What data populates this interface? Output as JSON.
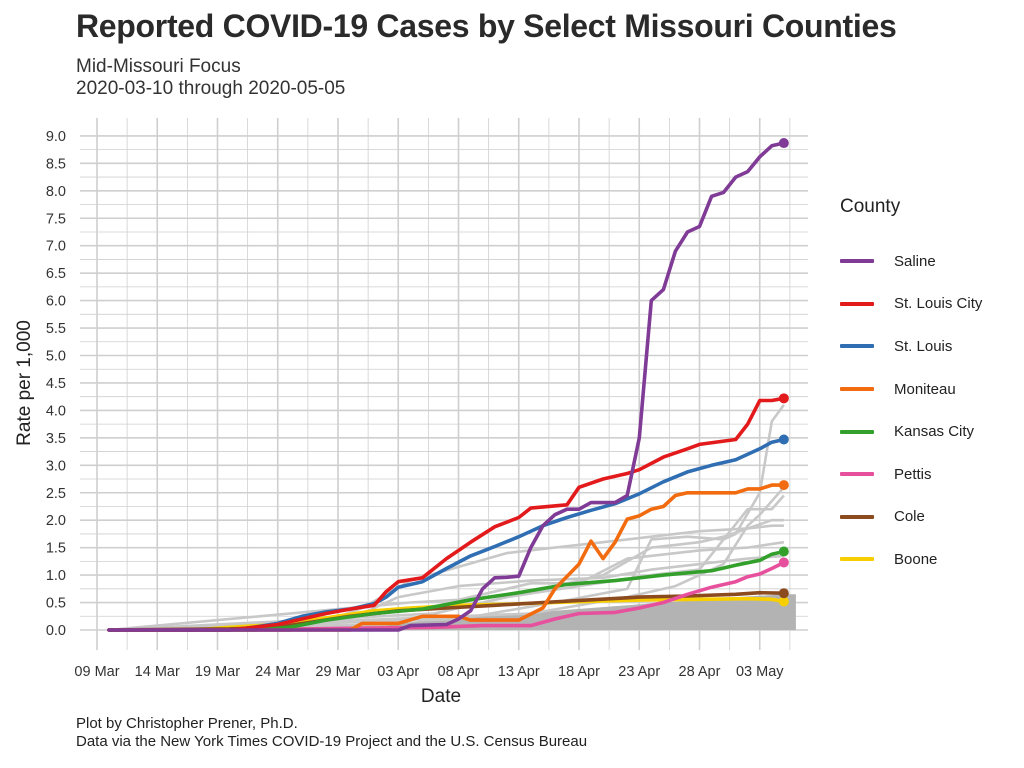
{
  "chart_data": {
    "type": "line",
    "title": "Reported COVID-19 Cases by Select Missouri Counties",
    "subtitle": [
      "Mid-Missouri Focus",
      "2020-03-10 through 2020-05-05"
    ],
    "xlabel": "Date",
    "ylabel": "Rate per 1,000",
    "xlim": [
      "2020-03-09",
      "2020-05-07"
    ],
    "ylim": [
      0,
      9
    ],
    "x_ticks": [
      {
        "date": "2020-03-09",
        "label": "09 Mar"
      },
      {
        "date": "2020-03-14",
        "label": "14 Mar"
      },
      {
        "date": "2020-03-19",
        "label": "19 Mar"
      },
      {
        "date": "2020-03-24",
        "label": "24 Mar"
      },
      {
        "date": "2020-03-29",
        "label": "29 Mar"
      },
      {
        "date": "2020-04-03",
        "label": "03 Apr"
      },
      {
        "date": "2020-04-08",
        "label": "08 Apr"
      },
      {
        "date": "2020-04-13",
        "label": "13 Apr"
      },
      {
        "date": "2020-04-18",
        "label": "18 Apr"
      },
      {
        "date": "2020-04-23",
        "label": "23 Apr"
      },
      {
        "date": "2020-04-28",
        "label": "28 Apr"
      },
      {
        "date": "2020-05-03",
        "label": "03 May"
      }
    ],
    "y_ticks": [
      "0.0",
      "0.5",
      "1.0",
      "1.5",
      "2.0",
      "2.5",
      "3.0",
      "3.5",
      "4.0",
      "4.5",
      "5.0",
      "5.5",
      "6.0",
      "6.5",
      "7.0",
      "7.5",
      "8.0",
      "8.5",
      "9.0"
    ],
    "grid": true,
    "legend_title": "County",
    "legend_position": "right",
    "series": [
      {
        "name": "Saline",
        "color": "#7f3b96",
        "points": [
          [
            "2020-03-10",
            0
          ],
          [
            "2020-04-03",
            0
          ],
          [
            "2020-04-04",
            0.08
          ],
          [
            "2020-04-07",
            0.1
          ],
          [
            "2020-04-08",
            0.2
          ],
          [
            "2020-04-09",
            0.35
          ],
          [
            "2020-04-10",
            0.75
          ],
          [
            "2020-04-11",
            0.95
          ],
          [
            "2020-04-12",
            0.96
          ],
          [
            "2020-04-13",
            0.98
          ],
          [
            "2020-04-14",
            1.5
          ],
          [
            "2020-04-15",
            1.9
          ],
          [
            "2020-04-16",
            2.1
          ],
          [
            "2020-04-17",
            2.2
          ],
          [
            "2020-04-18",
            2.2
          ],
          [
            "2020-04-19",
            2.32
          ],
          [
            "2020-04-21",
            2.32
          ],
          [
            "2020-04-22",
            2.45
          ],
          [
            "2020-04-23",
            3.5
          ],
          [
            "2020-04-24",
            6.0
          ],
          [
            "2020-04-25",
            6.2
          ],
          [
            "2020-04-26",
            6.9
          ],
          [
            "2020-04-27",
            7.25
          ],
          [
            "2020-04-28",
            7.35
          ],
          [
            "2020-04-29",
            7.9
          ],
          [
            "2020-04-30",
            7.97
          ],
          [
            "2020-05-01",
            8.25
          ],
          [
            "2020-05-02",
            8.35
          ],
          [
            "2020-05-03",
            8.62
          ],
          [
            "2020-05-04",
            8.82
          ],
          [
            "2020-05-05",
            8.87
          ]
        ]
      },
      {
        "name": "St. Louis City",
        "color": "#e31a1c",
        "points": [
          [
            "2020-03-10",
            0
          ],
          [
            "2020-03-20",
            0
          ],
          [
            "2020-03-22",
            0.05
          ],
          [
            "2020-03-24",
            0.1
          ],
          [
            "2020-03-26",
            0.2
          ],
          [
            "2020-03-28",
            0.3
          ],
          [
            "2020-03-30",
            0.38
          ],
          [
            "2020-04-01",
            0.45
          ],
          [
            "2020-04-02",
            0.7
          ],
          [
            "2020-04-03",
            0.88
          ],
          [
            "2020-04-05",
            0.95
          ],
          [
            "2020-04-07",
            1.3
          ],
          [
            "2020-04-09",
            1.6
          ],
          [
            "2020-04-11",
            1.88
          ],
          [
            "2020-04-13",
            2.05
          ],
          [
            "2020-04-14",
            2.22
          ],
          [
            "2020-04-17",
            2.28
          ],
          [
            "2020-04-18",
            2.6
          ],
          [
            "2020-04-20",
            2.75
          ],
          [
            "2020-04-22",
            2.85
          ],
          [
            "2020-04-23",
            2.92
          ],
          [
            "2020-04-25",
            3.15
          ],
          [
            "2020-04-27",
            3.3
          ],
          [
            "2020-04-28",
            3.38
          ],
          [
            "2020-05-01",
            3.47
          ],
          [
            "2020-05-02",
            3.75
          ],
          [
            "2020-05-03",
            4.18
          ],
          [
            "2020-05-04",
            4.18
          ],
          [
            "2020-05-05",
            4.22
          ]
        ]
      },
      {
        "name": "St. Louis",
        "color": "#2f6eb2",
        "points": [
          [
            "2020-03-10",
            0
          ],
          [
            "2020-03-20",
            0
          ],
          [
            "2020-03-22",
            0.05
          ],
          [
            "2020-03-24",
            0.12
          ],
          [
            "2020-03-26",
            0.25
          ],
          [
            "2020-03-28",
            0.33
          ],
          [
            "2020-03-30",
            0.38
          ],
          [
            "2020-04-01",
            0.48
          ],
          [
            "2020-04-02",
            0.6
          ],
          [
            "2020-04-03",
            0.78
          ],
          [
            "2020-04-05",
            0.88
          ],
          [
            "2020-04-07",
            1.12
          ],
          [
            "2020-04-09",
            1.35
          ],
          [
            "2020-04-11",
            1.52
          ],
          [
            "2020-04-13",
            1.7
          ],
          [
            "2020-04-15",
            1.9
          ],
          [
            "2020-04-17",
            2.05
          ],
          [
            "2020-04-19",
            2.18
          ],
          [
            "2020-04-21",
            2.3
          ],
          [
            "2020-04-23",
            2.48
          ],
          [
            "2020-04-25",
            2.7
          ],
          [
            "2020-04-27",
            2.88
          ],
          [
            "2020-04-29",
            3.0
          ],
          [
            "2020-05-01",
            3.1
          ],
          [
            "2020-05-03",
            3.3
          ],
          [
            "2020-05-04",
            3.42
          ],
          [
            "2020-05-05",
            3.47
          ]
        ]
      },
      {
        "name": "Moniteau",
        "color": "#f26b0f",
        "points": [
          [
            "2020-03-10",
            0
          ],
          [
            "2020-03-30",
            0
          ],
          [
            "2020-03-31",
            0.12
          ],
          [
            "2020-04-03",
            0.12
          ],
          [
            "2020-04-05",
            0.25
          ],
          [
            "2020-04-08",
            0.25
          ],
          [
            "2020-04-09",
            0.18
          ],
          [
            "2020-04-13",
            0.18
          ],
          [
            "2020-04-15",
            0.4
          ],
          [
            "2020-04-16",
            0.75
          ],
          [
            "2020-04-18",
            1.2
          ],
          [
            "2020-04-19",
            1.62
          ],
          [
            "2020-04-20",
            1.3
          ],
          [
            "2020-04-21",
            1.6
          ],
          [
            "2020-04-22",
            2.02
          ],
          [
            "2020-04-23",
            2.08
          ],
          [
            "2020-04-24",
            2.2
          ],
          [
            "2020-04-25",
            2.25
          ],
          [
            "2020-04-26",
            2.45
          ],
          [
            "2020-04-27",
            2.5
          ],
          [
            "2020-05-01",
            2.5
          ],
          [
            "2020-05-02",
            2.57
          ],
          [
            "2020-05-03",
            2.57
          ],
          [
            "2020-05-04",
            2.64
          ],
          [
            "2020-05-05",
            2.64
          ]
        ]
      },
      {
        "name": "Kansas City",
        "color": "#33a02c",
        "points": [
          [
            "2020-03-10",
            0
          ],
          [
            "2020-03-22",
            0
          ],
          [
            "2020-03-25",
            0.05
          ],
          [
            "2020-03-28",
            0.18
          ],
          [
            "2020-04-01",
            0.3
          ],
          [
            "2020-04-05",
            0.38
          ],
          [
            "2020-04-09",
            0.55
          ],
          [
            "2020-04-13",
            0.68
          ],
          [
            "2020-04-17",
            0.83
          ],
          [
            "2020-04-21",
            0.9
          ],
          [
            "2020-04-25",
            1.0
          ],
          [
            "2020-04-29",
            1.08
          ],
          [
            "2020-05-01",
            1.18
          ],
          [
            "2020-05-03",
            1.27
          ],
          [
            "2020-05-04",
            1.38
          ],
          [
            "2020-05-05",
            1.43
          ]
        ]
      },
      {
        "name": "Pettis",
        "color": "#e7509d",
        "points": [
          [
            "2020-03-10",
            0
          ],
          [
            "2020-03-25",
            0
          ],
          [
            "2020-03-26",
            0.02
          ],
          [
            "2020-04-06",
            0.05
          ],
          [
            "2020-04-10",
            0.08
          ],
          [
            "2020-04-14",
            0.08
          ],
          [
            "2020-04-16",
            0.2
          ],
          [
            "2020-04-18",
            0.3
          ],
          [
            "2020-04-21",
            0.32
          ],
          [
            "2020-04-23",
            0.4
          ],
          [
            "2020-04-25",
            0.5
          ],
          [
            "2020-04-27",
            0.65
          ],
          [
            "2020-04-29",
            0.78
          ],
          [
            "2020-05-01",
            0.88
          ],
          [
            "2020-05-02",
            0.97
          ],
          [
            "2020-05-03",
            1.02
          ],
          [
            "2020-05-04",
            1.12
          ],
          [
            "2020-05-05",
            1.23
          ]
        ]
      },
      {
        "name": "Cole",
        "color": "#8c4a1f",
        "points": [
          [
            "2020-03-10",
            0
          ],
          [
            "2020-03-20",
            0.02
          ],
          [
            "2020-03-24",
            0.05
          ],
          [
            "2020-03-27",
            0.15
          ],
          [
            "2020-03-30",
            0.25
          ],
          [
            "2020-04-03",
            0.35
          ],
          [
            "2020-04-07",
            0.4
          ],
          [
            "2020-04-11",
            0.45
          ],
          [
            "2020-04-15",
            0.5
          ],
          [
            "2020-04-19",
            0.55
          ],
          [
            "2020-04-23",
            0.6
          ],
          [
            "2020-04-27",
            0.62
          ],
          [
            "2020-05-01",
            0.65
          ],
          [
            "2020-05-03",
            0.68
          ],
          [
            "2020-05-05",
            0.67
          ]
        ]
      },
      {
        "name": "Boone",
        "color": "#f7cf00",
        "points": [
          [
            "2020-03-10",
            0
          ],
          [
            "2020-03-17",
            0
          ],
          [
            "2020-03-20",
            0.05
          ],
          [
            "2020-03-24",
            0.1
          ],
          [
            "2020-03-28",
            0.22
          ],
          [
            "2020-04-01",
            0.35
          ],
          [
            "2020-04-04",
            0.4
          ],
          [
            "2020-04-08",
            0.45
          ],
          [
            "2020-04-12",
            0.47
          ],
          [
            "2020-04-16",
            0.5
          ],
          [
            "2020-04-20",
            0.53
          ],
          [
            "2020-04-24",
            0.55
          ],
          [
            "2020-04-28",
            0.56
          ],
          [
            "2020-05-02",
            0.57
          ],
          [
            "2020-05-04",
            0.56
          ],
          [
            "2020-05-05",
            0.52
          ]
        ]
      }
    ]
  },
  "caption": [
    "Plot by Christopher Prener, Ph.D.",
    "Data via the New York Times COVID-19 Project and the U.S. Census Bureau"
  ],
  "colors": {
    "background_counties": "#c8c8c8",
    "background_fill": "#b3b3b3",
    "grid": "#cfcfcf"
  }
}
